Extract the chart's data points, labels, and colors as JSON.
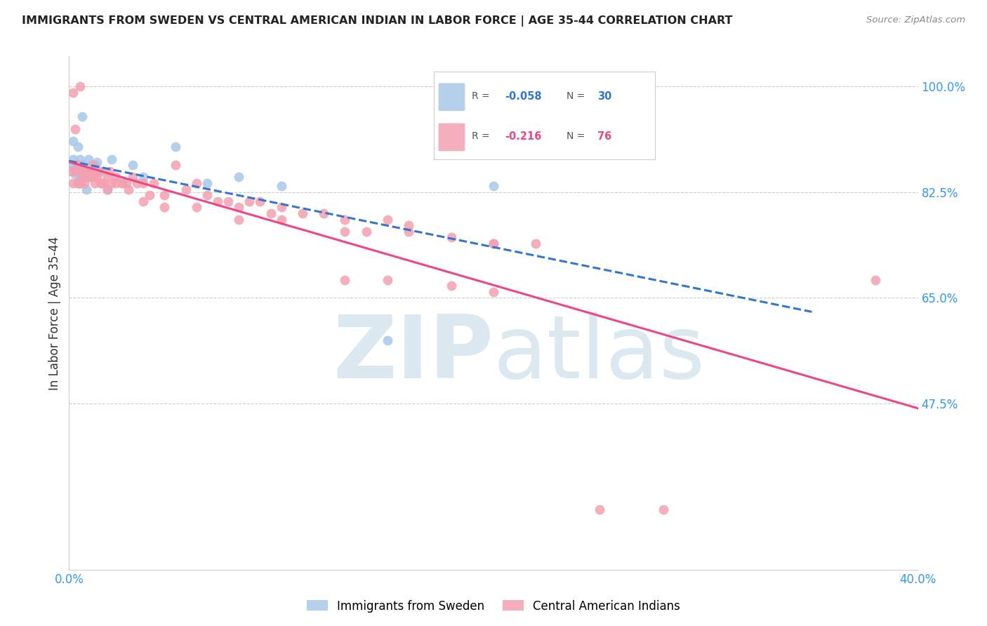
{
  "title": "IMMIGRANTS FROM SWEDEN VS CENTRAL AMERICAN INDIAN IN LABOR FORCE | AGE 35-44 CORRELATION CHART",
  "source": "Source: ZipAtlas.com",
  "ylabel": "In Labor Force | Age 35-44",
  "xlim": [
    0.0,
    0.4
  ],
  "ylim": [
    0.2,
    1.05
  ],
  "yticks": [
    0.475,
    0.65,
    0.825,
    1.0
  ],
  "ytick_labels": [
    "47.5%",
    "65.0%",
    "82.5%",
    "100.0%"
  ],
  "xticks": [
    0.0,
    0.05,
    0.1,
    0.15,
    0.2,
    0.25,
    0.3,
    0.35,
    0.4
  ],
  "xtick_labels": [
    "0.0%",
    "",
    "",
    "",
    "",
    "",
    "",
    "",
    "40.0%"
  ],
  "legend_blue_r": "-0.058",
  "legend_blue_n": "30",
  "legend_pink_r": "-0.216",
  "legend_pink_n": "76",
  "blue_color": "#a8c8e8",
  "pink_color": "#f4a0b0",
  "blue_line_color": "#3377cc",
  "pink_line_color": "#ee4488",
  "watermark_color": "#dce8f0",
  "background_color": "#ffffff",
  "grid_color": "#cccccc",
  "sweden_x": [
    0.001,
    0.002,
    0.002,
    0.003,
    0.003,
    0.004,
    0.004,
    0.005,
    0.005,
    0.006,
    0.006,
    0.007,
    0.008,
    0.009,
    0.01,
    0.011,
    0.012,
    0.013,
    0.015,
    0.018,
    0.02,
    0.025,
    0.03,
    0.035,
    0.05,
    0.065,
    0.08,
    0.1,
    0.15,
    0.2
  ],
  "sweden_y": [
    0.87,
    0.88,
    0.91,
    0.855,
    0.865,
    0.9,
    0.84,
    0.85,
    0.88,
    0.87,
    0.95,
    0.86,
    0.83,
    0.88,
    0.85,
    0.86,
    0.87,
    0.875,
    0.86,
    0.83,
    0.88,
    0.84,
    0.87,
    0.85,
    0.9,
    0.84,
    0.85,
    0.835,
    0.58,
    0.835
  ],
  "ca_indian_x": [
    0.001,
    0.002,
    0.002,
    0.003,
    0.003,
    0.004,
    0.004,
    0.005,
    0.005,
    0.006,
    0.006,
    0.007,
    0.008,
    0.009,
    0.01,
    0.011,
    0.012,
    0.013,
    0.014,
    0.015,
    0.016,
    0.018,
    0.019,
    0.02,
    0.022,
    0.025,
    0.027,
    0.03,
    0.032,
    0.035,
    0.038,
    0.04,
    0.045,
    0.05,
    0.055,
    0.06,
    0.065,
    0.07,
    0.075,
    0.08,
    0.085,
    0.09,
    0.095,
    0.1,
    0.11,
    0.12,
    0.13,
    0.14,
    0.15,
    0.16,
    0.18,
    0.2,
    0.22,
    0.005,
    0.007,
    0.01,
    0.012,
    0.015,
    0.018,
    0.022,
    0.028,
    0.035,
    0.045,
    0.06,
    0.08,
    0.1,
    0.13,
    0.16,
    0.2,
    0.13,
    0.15,
    0.18,
    0.2,
    0.25,
    0.28,
    0.38
  ],
  "ca_indian_y": [
    0.86,
    0.84,
    0.99,
    0.86,
    0.93,
    0.84,
    0.87,
    0.84,
    1.0,
    0.86,
    0.85,
    0.84,
    0.86,
    0.85,
    0.86,
    0.87,
    0.85,
    0.85,
    0.86,
    0.84,
    0.84,
    0.85,
    0.86,
    0.84,
    0.85,
    0.84,
    0.84,
    0.85,
    0.84,
    0.84,
    0.82,
    0.84,
    0.82,
    0.87,
    0.83,
    0.84,
    0.82,
    0.81,
    0.81,
    0.8,
    0.81,
    0.81,
    0.79,
    0.8,
    0.79,
    0.79,
    0.78,
    0.76,
    0.78,
    0.77,
    0.75,
    0.74,
    0.74,
    0.84,
    0.85,
    0.86,
    0.84,
    0.84,
    0.83,
    0.84,
    0.83,
    0.81,
    0.8,
    0.8,
    0.78,
    0.78,
    0.76,
    0.76,
    0.74,
    0.68,
    0.68,
    0.67,
    0.66,
    0.3,
    0.3,
    0.68
  ]
}
